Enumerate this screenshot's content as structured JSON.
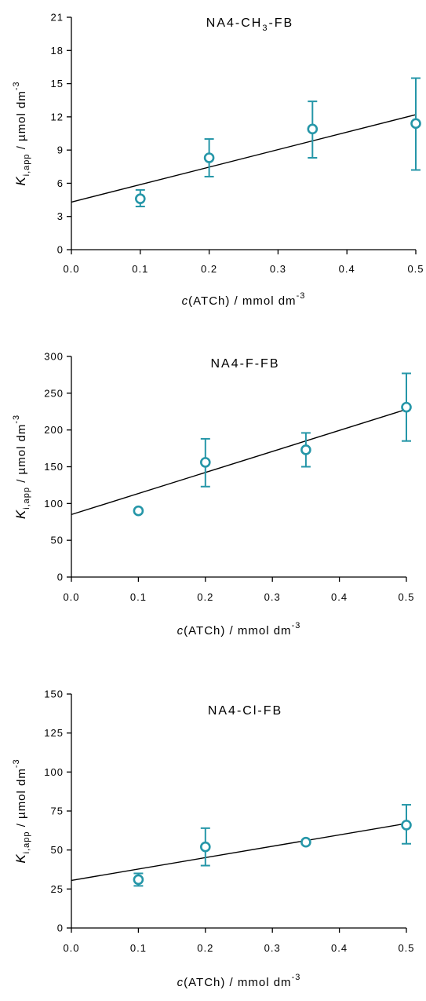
{
  "chart_data": [
    {
      "type": "scatter",
      "title": "NA4-CH",
      "title_sub": "3",
      "title_suffix": "-FB",
      "xlabel": {
        "italic": "c",
        "main": "(ATCh) / mmol dm",
        "sup": "-3"
      },
      "ylabel": {
        "italic": "K",
        "sub": "i,app",
        "main": " / µmol dm",
        "sup": "-3"
      },
      "xlim": [
        0,
        0.5
      ],
      "ylim": [
        0,
        21
      ],
      "xticks": [
        0.0,
        0.1,
        0.2,
        0.3,
        0.4,
        0.5
      ],
      "xtick_labels": [
        "0.0",
        "0.1",
        "0.2",
        "0.3",
        "0.4",
        "0.5"
      ],
      "yticks": [
        0,
        3,
        6,
        9,
        12,
        15,
        18,
        21
      ],
      "ytick_labels": [
        "0",
        "3",
        "6",
        "9",
        "12",
        "15",
        "18",
        "21"
      ],
      "grid": false,
      "points": [
        {
          "x": 0.1,
          "y": 4.6,
          "err_low": 3.9,
          "err_high": 5.4
        },
        {
          "x": 0.2,
          "y": 8.3,
          "err_low": 6.6,
          "err_high": 10.0
        },
        {
          "x": 0.35,
          "y": 10.9,
          "err_low": 8.3,
          "err_high": 13.4
        },
        {
          "x": 0.5,
          "y": 11.4,
          "err_low": 7.2,
          "err_high": 15.5
        }
      ],
      "fit": {
        "x": [
          0.0,
          0.5
        ],
        "y": [
          4.3,
          12.2
        ]
      },
      "marker_color": "#2596a8",
      "line_color": "#000000"
    },
    {
      "type": "scatter",
      "title": "NA4-F-FB",
      "title_sub": "",
      "title_suffix": "",
      "xlabel": {
        "italic": "c",
        "main": "(ATCh) / mmol dm",
        "sup": "-3"
      },
      "ylabel": {
        "italic": "K",
        "sub": "i,app",
        "main": " / µmol dm",
        "sup": "-3"
      },
      "xlim": [
        0,
        0.5
      ],
      "ylim": [
        0,
        300
      ],
      "xticks": [
        0.0,
        0.1,
        0.2,
        0.3,
        0.4,
        0.5
      ],
      "xtick_labels": [
        "0.0",
        "0.1",
        "0.2",
        "0.3",
        "0.4",
        "0.5"
      ],
      "yticks": [
        0,
        50,
        100,
        150,
        200,
        250,
        300
      ],
      "ytick_labels": [
        "0",
        "50",
        "100",
        "150",
        "200",
        "250",
        "300"
      ],
      "grid": false,
      "points": [
        {
          "x": 0.1,
          "y": 90,
          "err_low": 90,
          "err_high": 90
        },
        {
          "x": 0.2,
          "y": 156,
          "err_low": 123,
          "err_high": 188
        },
        {
          "x": 0.35,
          "y": 173,
          "err_low": 150,
          "err_high": 196
        },
        {
          "x": 0.5,
          "y": 231,
          "err_low": 185,
          "err_high": 277
        }
      ],
      "fit": {
        "x": [
          0.0,
          0.5
        ],
        "y": [
          85,
          228
        ]
      },
      "marker_color": "#2596a8",
      "line_color": "#000000"
    },
    {
      "type": "scatter",
      "title": "NA4-Cl-FB",
      "title_sub": "",
      "title_suffix": "",
      "xlabel": {
        "italic": "c",
        "main": "(ATCh) / mmol dm",
        "sup": "-3"
      },
      "ylabel": {
        "italic": "K",
        "sub": "i,app",
        "main": " / µmol dm",
        "sup": "-3"
      },
      "xlim": [
        0,
        0.5
      ],
      "ylim": [
        0,
        150
      ],
      "xticks": [
        0.0,
        0.1,
        0.2,
        0.3,
        0.4,
        0.5
      ],
      "xtick_labels": [
        "0.0",
        "0.1",
        "0.2",
        "0.3",
        "0.4",
        "0.5"
      ],
      "yticks": [
        0,
        25,
        50,
        75,
        100,
        125,
        150
      ],
      "ytick_labels": [
        "0",
        "25",
        "50",
        "75",
        "100",
        "125",
        "150"
      ],
      "grid": false,
      "points": [
        {
          "x": 0.1,
          "y": 31,
          "err_low": 27,
          "err_high": 35
        },
        {
          "x": 0.2,
          "y": 52,
          "err_low": 40,
          "err_high": 64
        },
        {
          "x": 0.35,
          "y": 55,
          "err_low": 55,
          "err_high": 55
        },
        {
          "x": 0.5,
          "y": 66,
          "err_low": 54,
          "err_high": 79
        }
      ],
      "fit": {
        "x": [
          0.0,
          0.5
        ],
        "y": [
          30.5,
          67
        ]
      },
      "marker_color": "#2596a8",
      "line_color": "#000000"
    }
  ]
}
